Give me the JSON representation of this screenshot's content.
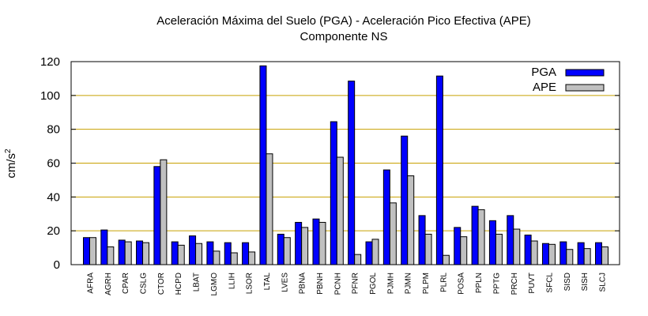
{
  "chart_data": {
    "type": "bar",
    "title": "Aceleración Máxima del Suelo (PGA) -  Aceleración Pico Efectiva (APE)",
    "subtitle": "Componente NS",
    "ylabel": "cm/s",
    "ylabel_sup": "2",
    "xlabel": "",
    "ylim": [
      0,
      120
    ],
    "yticks": [
      0,
      20,
      40,
      60,
      80,
      100,
      120
    ],
    "grid": "horizontal",
    "legend_position": "top-right",
    "categories": [
      "AFRA",
      "AGRH",
      "CPAR",
      "CSLG",
      "CTOR",
      "HCPD",
      "LBAT",
      "LGMO",
      "LLIH",
      "LSOR",
      "LTAL",
      "LVES",
      "PBNA",
      "PBNH",
      "PCNH",
      "PFNR",
      "PGOL",
      "PJMH",
      "PJMN",
      "PLPM",
      "PLRL",
      "POSA",
      "PPLN",
      "PPTG",
      "PRCH",
      "PUVT",
      "SFCL",
      "SISD",
      "SISH",
      "SLCJ"
    ],
    "series": [
      {
        "name": "PGA",
        "color": "#0000ff",
        "values": [
          16,
          20.5,
          14.5,
          14,
          58,
          13.5,
          17,
          13.5,
          13,
          13,
          117.5,
          18,
          25,
          27,
          84.5,
          108.5,
          13.5,
          56,
          76,
          29,
          111.5,
          22,
          34.5,
          26,
          29,
          17.5,
          12.5,
          13.5,
          13,
          13
        ]
      },
      {
        "name": "APE",
        "color": "#c0c0c0",
        "values": [
          16,
          10.5,
          13.5,
          13,
          62,
          11.5,
          12.5,
          8,
          7,
          7.5,
          65.5,
          16,
          22,
          25,
          63.5,
          6,
          15,
          36.5,
          52.5,
          18,
          5.5,
          16.5,
          32.5,
          18,
          21,
          14,
          12,
          9,
          9.5,
          10.5
        ]
      }
    ]
  }
}
